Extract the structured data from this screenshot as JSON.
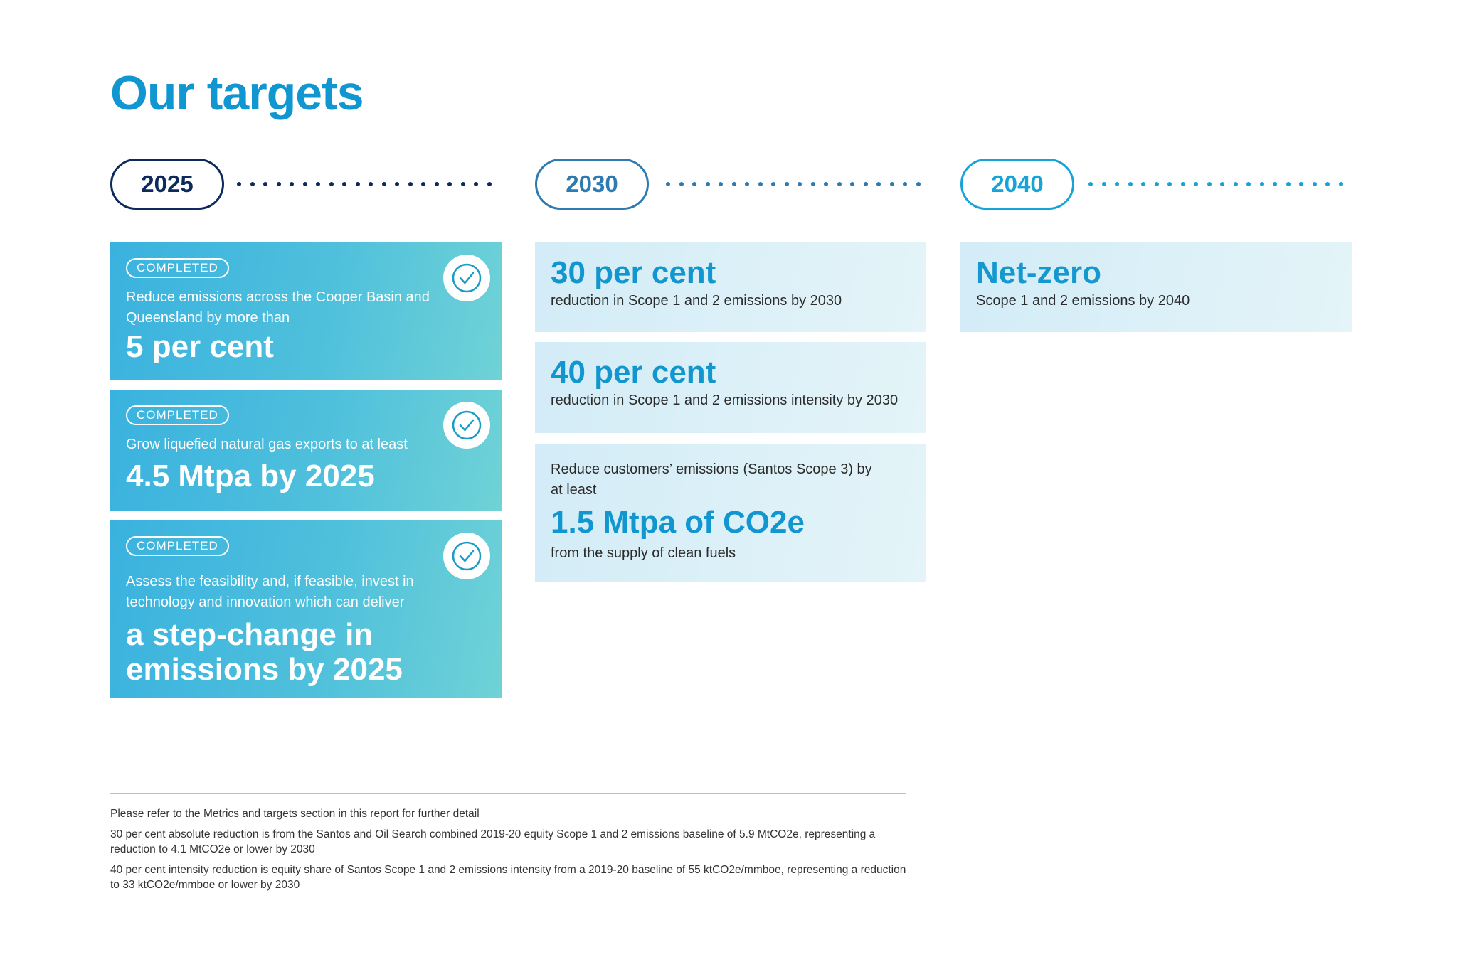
{
  "title": "Our targets",
  "years": [
    "2025",
    "2030",
    "2040"
  ],
  "targets_2025": [
    {
      "status": "COMPLETED",
      "description": "Reduce emissions across the Cooper Basin and Queensland by more than",
      "headline": "5 per cent"
    },
    {
      "status": "COMPLETED",
      "description": "Grow liquefied natural gas exports to at least",
      "headline": "4.5 Mtpa by 2025"
    },
    {
      "status": "COMPLETED",
      "description": "Assess the feasibility and, if feasible, invest in technology and innovation which can deliver",
      "headline": "a step-change in emissions by 2025"
    }
  ],
  "targets_2030": [
    {
      "headline": "30 per cent",
      "description": "reduction in Scope 1 and 2 emissions by 2030"
    },
    {
      "headline": "40 per cent",
      "description": "reduction in Scope 1 and 2 emissions intensity by 2030"
    },
    {
      "intro": "Reduce customers’ emissions (Santos Scope 3) by at least",
      "headline": "1.5 Mtpa of CO2e",
      "description": "from the supply of clean fuels"
    }
  ],
  "targets_2040": [
    {
      "headline": "Net-zero",
      "description": "Scope 1 and 2 emissions by 2040"
    }
  ],
  "footnotes": {
    "refer_prefix": "Please refer to the ",
    "refer_link": "Metrics and targets section",
    "refer_suffix": " in this report for further detail",
    "note_30": "30 per cent absolute reduction is from the Santos and Oil Search combined 2019-20 equity Scope 1 and 2 emissions baseline of 5.9 MtCO2e, representing a reduction to 4.1 MtCO2e or lower by 2030",
    "note_40": "40 per cent intensity reduction is equity share of Santos Scope 1 and 2 emissions intensity from a 2019-20 baseline of 55 ktCO2e/mmboe, representing a reduction to 33 ktCO2e/mmboe or lower by 2030"
  },
  "colors": {
    "title": "#1096d0",
    "year_2025": "#0d2a5c",
    "year_2030": "#2d7bb0",
    "year_2040": "#18a3d6",
    "completed_card": "#3ab2df",
    "pale_card": "#d9eff8",
    "headline_blue": "#1296cf"
  },
  "icons": [
    "check-circle-icon"
  ]
}
